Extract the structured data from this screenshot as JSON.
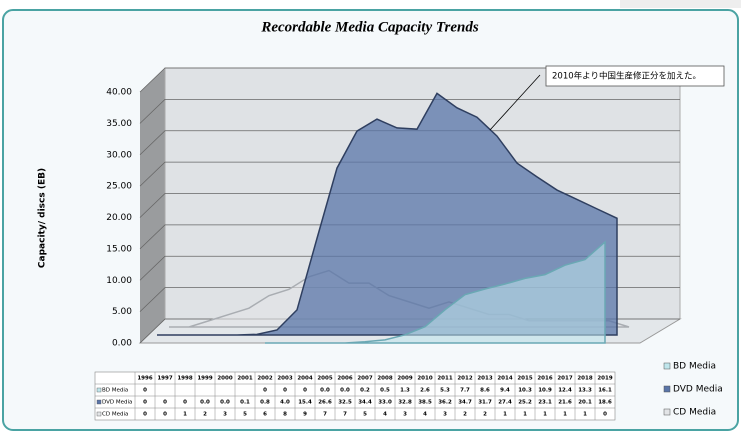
{
  "chart_data": {
    "type": "area3d",
    "title": "Recordable Media Capacity Trends",
    "y_label": "Capacity/ discs (EB)",
    "annotation": "2010年より中国生産修正分を加えた。",
    "categories": [
      "1996",
      "1997",
      "1998",
      "1999",
      "2000",
      "2001",
      "2002",
      "2003",
      "2004",
      "2005",
      "2006",
      "2007",
      "2008",
      "2009",
      "2010",
      "2011",
      "2012",
      "2013",
      "2014",
      "2015",
      "2016",
      "2017",
      "2018",
      "2019"
    ],
    "series": [
      {
        "name": "BD Media",
        "color": "#bfe6ec",
        "values": [
          0,
          null,
          null,
          null,
          null,
          null,
          0,
          0,
          0,
          0,
          0,
          0.2,
          0.5,
          1.3,
          2.6,
          5.3,
          7.7,
          8.6,
          9.4,
          10.3,
          10.9,
          12.4,
          13.3,
          16.1
        ],
        "value_labels": [
          "0",
          null,
          null,
          null,
          null,
          null,
          "0",
          "0",
          "0",
          "0.0",
          "0.0",
          "0.2",
          "0.5",
          "1.3",
          "2.6",
          "5.3",
          "7.7",
          "8.6",
          "9.4",
          "10.3",
          "10.9",
          "12.4",
          "13.3",
          "16.1"
        ]
      },
      {
        "name": "DVD Media",
        "color": "#5a75a8",
        "values": [
          0,
          0,
          0,
          0,
          0,
          0.1,
          0.8,
          4.0,
          15.4,
          26.6,
          32.5,
          34.4,
          33.0,
          32.8,
          38.5,
          36.2,
          34.7,
          31.7,
          27.4,
          25.2,
          23.1,
          21.6,
          20.1,
          18.6
        ],
        "value_labels": [
          "0",
          "0",
          "0",
          "0.0",
          "0.0",
          "0.1",
          "0.8",
          "4.0",
          "15.4",
          "26.6",
          "32.5",
          "34.4",
          "33.0",
          "32.8",
          "38.5",
          "36.2",
          "34.7",
          "31.7",
          "27.4",
          "25.2",
          "23.1",
          "21.6",
          "20.1",
          "18.6"
        ]
      },
      {
        "name": "CD Media",
        "color": "#e2e4e6",
        "values": [
          0,
          0,
          1,
          2,
          3,
          5,
          6,
          8,
          9,
          7,
          7,
          5,
          4,
          3,
          4,
          3,
          2,
          2,
          1,
          1,
          1,
          1,
          1,
          0
        ]
      }
    ],
    "ylim": [
      0,
      40
    ],
    "yticks": [
      {
        "value": 0,
        "label": "0.00"
      },
      {
        "value": 5,
        "label": "5.00"
      },
      {
        "value": 10,
        "label": "10.00"
      },
      {
        "value": 15,
        "label": "15.00"
      },
      {
        "value": 20,
        "label": "20.00"
      },
      {
        "value": 25,
        "label": "25.00"
      },
      {
        "value": 30,
        "label": "30.00"
      },
      {
        "value": 35,
        "label": "35.00"
      },
      {
        "value": 40,
        "label": "40.00"
      }
    ],
    "grid": true,
    "legend": "right"
  }
}
